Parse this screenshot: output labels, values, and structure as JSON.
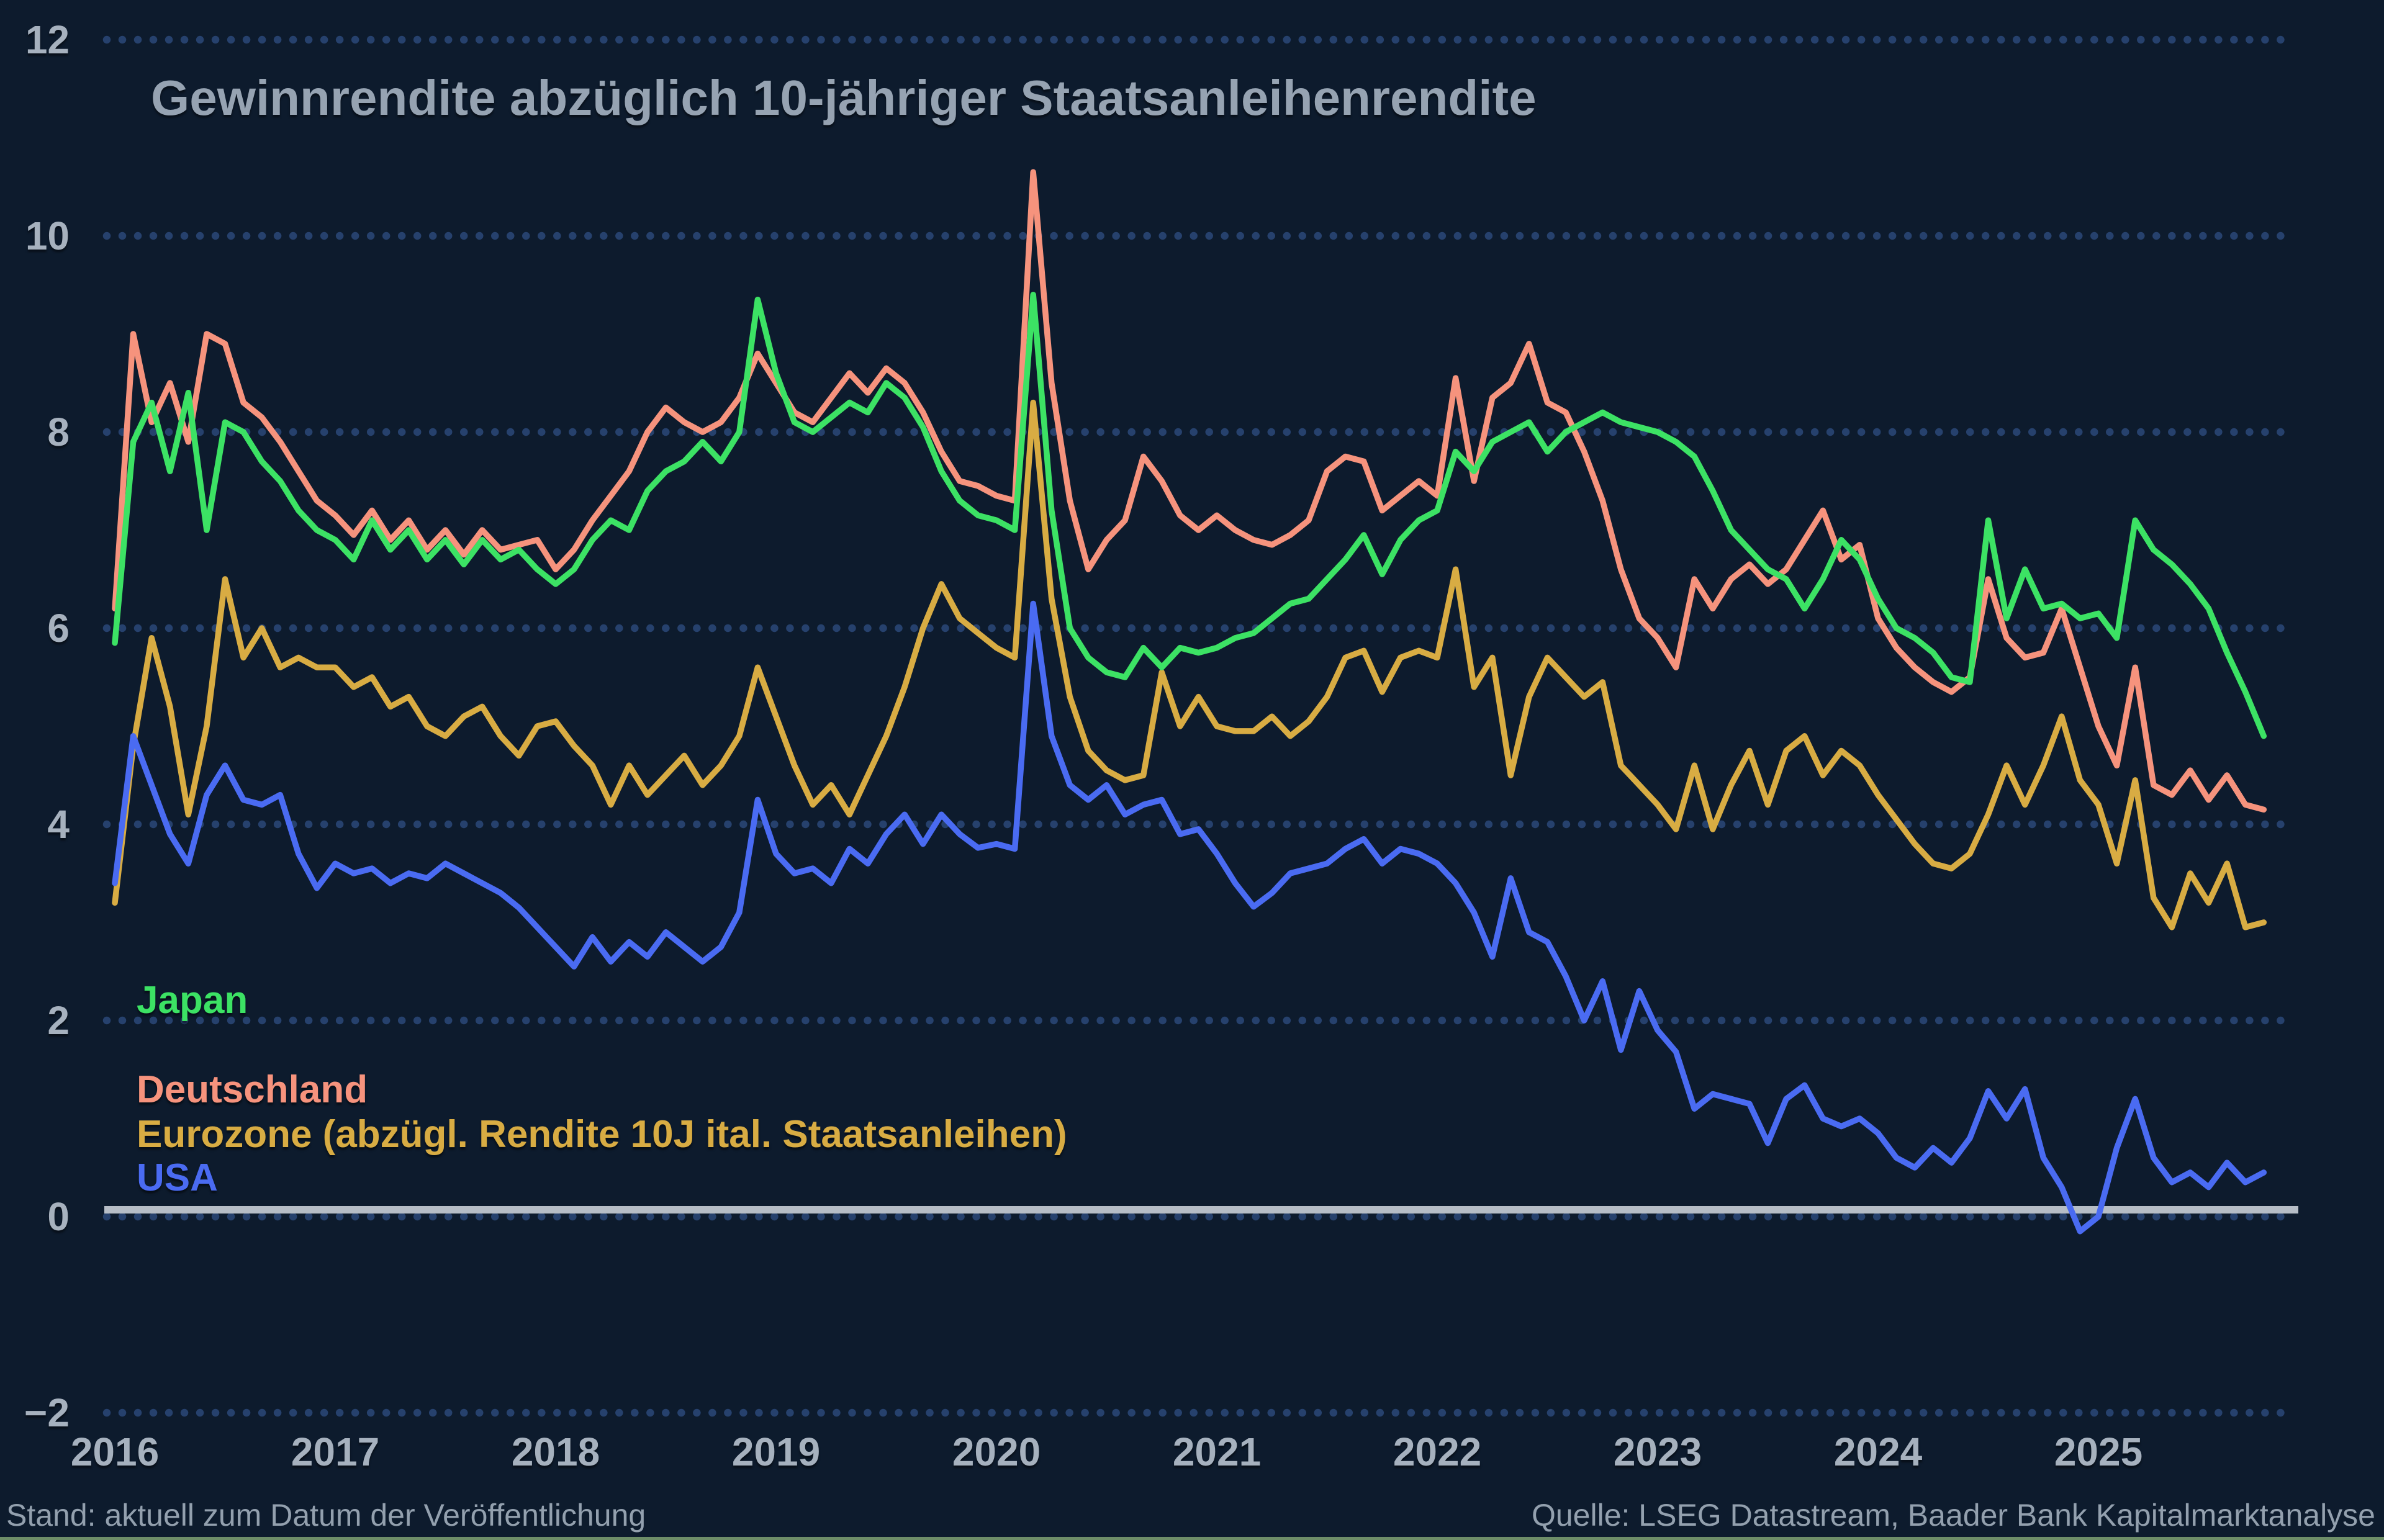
{
  "title": "Gewinnrendite abzüglich 10-jähriger Staatsanleihenrendite",
  "footer": {
    "left": "Stand: aktuell zum Datum der Veröffentlichung",
    "right": "Quelle: LSEG Datastream, Baader Bank Kapitalmarktanalyse"
  },
  "colors": {
    "background": "#0D1B2D",
    "grid_dots": "#26416D",
    "axis_text": "#A6B1BE",
    "title_text": "#96A3B2",
    "footer_text": "#93A0AE",
    "zero_line": "#B6BDC6",
    "bottom_accent": "#6E8E68"
  },
  "chart_data": {
    "type": "line",
    "title": "Gewinnrendite abzüglich 10-jähriger Staatsanleihenrendite",
    "xlabel": "",
    "ylabel": "",
    "x_start": 2016,
    "points_per_year": 12,
    "x_ticks": [
      2016,
      2017,
      2018,
      2019,
      2020,
      2021,
      2022,
      2023,
      2024,
      2025
    ],
    "y_ticks": [
      12,
      10,
      8,
      6,
      4,
      2,
      0,
      -2
    ],
    "ylim": [
      -2.6,
      12.4
    ],
    "xlim": [
      2015.93,
      2025.93
    ],
    "grid": "horizontal dotted",
    "zero_line": true,
    "legend_position": "inside left, stacked labels",
    "series": [
      {
        "name": "Japan",
        "color": "#3CE264",
        "values": [
          5.85,
          7.9,
          8.3,
          7.6,
          8.4,
          7.0,
          8.1,
          8.0,
          7.7,
          7.5,
          7.2,
          7.0,
          6.9,
          6.7,
          7.1,
          6.8,
          7.0,
          6.7,
          6.9,
          6.65,
          6.9,
          6.7,
          6.8,
          6.6,
          6.45,
          6.6,
          6.9,
          7.1,
          7.0,
          7.4,
          7.6,
          7.7,
          7.9,
          7.7,
          8.0,
          9.35,
          8.6,
          8.1,
          8.0,
          8.15,
          8.3,
          8.2,
          8.5,
          8.35,
          8.05,
          7.6,
          7.3,
          7.15,
          7.1,
          7.0,
          9.4,
          7.2,
          6.0,
          5.7,
          5.55,
          5.5,
          5.8,
          5.6,
          5.8,
          5.75,
          5.8,
          5.9,
          5.95,
          6.1,
          6.25,
          6.3,
          6.5,
          6.7,
          6.95,
          6.55,
          6.9,
          7.1,
          7.2,
          7.8,
          7.6,
          7.9,
          8.0,
          8.1,
          7.8,
          8.0,
          8.1,
          8.2,
          8.1,
          8.05,
          8.0,
          7.9,
          7.75,
          7.4,
          7.0,
          6.8,
          6.6,
          6.5,
          6.2,
          6.5,
          6.9,
          6.7,
          6.3,
          6.0,
          5.9,
          5.75,
          5.5,
          5.45,
          7.1,
          6.1,
          6.6,
          6.2,
          6.25,
          6.1,
          6.15,
          5.9,
          7.1,
          6.8,
          6.65,
          6.45,
          6.2,
          5.75,
          5.35,
          4.9
        ]
      },
      {
        "name": "Deutschland",
        "color": "#F6937D",
        "values": [
          6.2,
          9.0,
          8.1,
          8.5,
          7.9,
          9.0,
          8.9,
          8.3,
          8.15,
          7.9,
          7.6,
          7.3,
          7.15,
          6.95,
          7.2,
          6.9,
          7.1,
          6.8,
          7.0,
          6.75,
          7.0,
          6.8,
          6.85,
          6.9,
          6.6,
          6.8,
          7.1,
          7.35,
          7.6,
          8.0,
          8.25,
          8.1,
          8.0,
          8.1,
          8.35,
          8.8,
          8.5,
          8.2,
          8.1,
          8.35,
          8.6,
          8.4,
          8.65,
          8.5,
          8.2,
          7.8,
          7.5,
          7.45,
          7.35,
          7.3,
          10.65,
          8.5,
          7.3,
          6.6,
          6.9,
          7.1,
          7.75,
          7.5,
          7.15,
          7.0,
          7.15,
          7.0,
          6.9,
          6.85,
          6.95,
          7.1,
          7.6,
          7.75,
          7.7,
          7.2,
          7.35,
          7.5,
          7.35,
          8.55,
          7.5,
          8.35,
          8.5,
          8.9,
          8.3,
          8.2,
          7.8,
          7.3,
          6.6,
          6.1,
          5.9,
          5.6,
          6.5,
          6.2,
          6.5,
          6.65,
          6.45,
          6.6,
          6.9,
          7.2,
          6.7,
          6.85,
          6.1,
          5.8,
          5.6,
          5.45,
          5.35,
          5.5,
          6.5,
          5.9,
          5.7,
          5.75,
          6.2,
          5.6,
          5.0,
          4.6,
          5.6,
          4.4,
          4.3,
          4.55,
          4.25,
          4.5,
          4.2,
          4.15
        ]
      },
      {
        "name": "Eurozone (abzügl. Rendite 10J ital. Staatsanleihen)",
        "color": "#D8AC43",
        "values": [
          3.2,
          4.8,
          5.9,
          5.2,
          4.1,
          5.0,
          6.5,
          5.7,
          6.0,
          5.6,
          5.7,
          5.6,
          5.6,
          5.4,
          5.5,
          5.2,
          5.3,
          5.0,
          4.9,
          5.1,
          5.2,
          4.9,
          4.7,
          5.0,
          5.05,
          4.8,
          4.6,
          4.2,
          4.6,
          4.3,
          4.5,
          4.7,
          4.4,
          4.6,
          4.9,
          5.6,
          5.1,
          4.6,
          4.2,
          4.4,
          4.1,
          4.5,
          4.9,
          5.4,
          6.0,
          6.45,
          6.1,
          5.95,
          5.8,
          5.7,
          8.3,
          6.3,
          5.3,
          4.75,
          4.55,
          4.45,
          4.5,
          5.55,
          5.0,
          5.3,
          5.0,
          4.95,
          4.95,
          5.1,
          4.9,
          5.05,
          5.3,
          5.7,
          5.77,
          5.35,
          5.7,
          5.77,
          5.7,
          6.6,
          5.4,
          5.7,
          4.5,
          5.3,
          5.7,
          5.5,
          5.3,
          5.45,
          4.6,
          4.4,
          4.2,
          3.95,
          4.6,
          3.95,
          4.4,
          4.75,
          4.2,
          4.75,
          4.9,
          4.5,
          4.75,
          4.6,
          4.3,
          4.05,
          3.8,
          3.6,
          3.55,
          3.7,
          4.1,
          4.6,
          4.2,
          4.6,
          5.1,
          4.45,
          4.2,
          3.6,
          4.45,
          3.25,
          2.95,
          3.5,
          3.2,
          3.6,
          2.95,
          3.0
        ]
      },
      {
        "name": "USA",
        "color": "#4A6BF2",
        "values": [
          3.4,
          4.9,
          4.4,
          3.9,
          3.6,
          4.3,
          4.6,
          4.25,
          4.2,
          4.3,
          3.7,
          3.35,
          3.6,
          3.5,
          3.55,
          3.4,
          3.5,
          3.45,
          3.6,
          3.5,
          3.4,
          3.3,
          3.15,
          2.95,
          2.75,
          2.55,
          2.85,
          2.6,
          2.8,
          2.65,
          2.9,
          2.75,
          2.6,
          2.75,
          3.1,
          4.25,
          3.7,
          3.5,
          3.55,
          3.4,
          3.75,
          3.6,
          3.9,
          4.1,
          3.8,
          4.1,
          3.9,
          3.76,
          3.8,
          3.75,
          6.25,
          4.9,
          4.4,
          4.25,
          4.4,
          4.1,
          4.2,
          4.25,
          3.9,
          3.95,
          3.7,
          3.4,
          3.16,
          3.3,
          3.5,
          3.55,
          3.6,
          3.75,
          3.85,
          3.6,
          3.75,
          3.7,
          3.6,
          3.4,
          3.1,
          2.65,
          3.45,
          2.9,
          2.8,
          2.45,
          2.0,
          2.4,
          1.7,
          2.3,
          1.9,
          1.68,
          1.1,
          1.25,
          1.2,
          1.15,
          0.75,
          1.2,
          1.34,
          1.0,
          0.92,
          1.0,
          0.85,
          0.6,
          0.5,
          0.7,
          0.55,
          0.8,
          1.28,
          1.0,
          1.3,
          0.6,
          0.3,
          -0.15,
          0.0,
          0.7,
          1.2,
          0.6,
          0.35,
          0.45,
          0.3,
          0.55,
          0.35,
          0.45
        ]
      }
    ]
  }
}
